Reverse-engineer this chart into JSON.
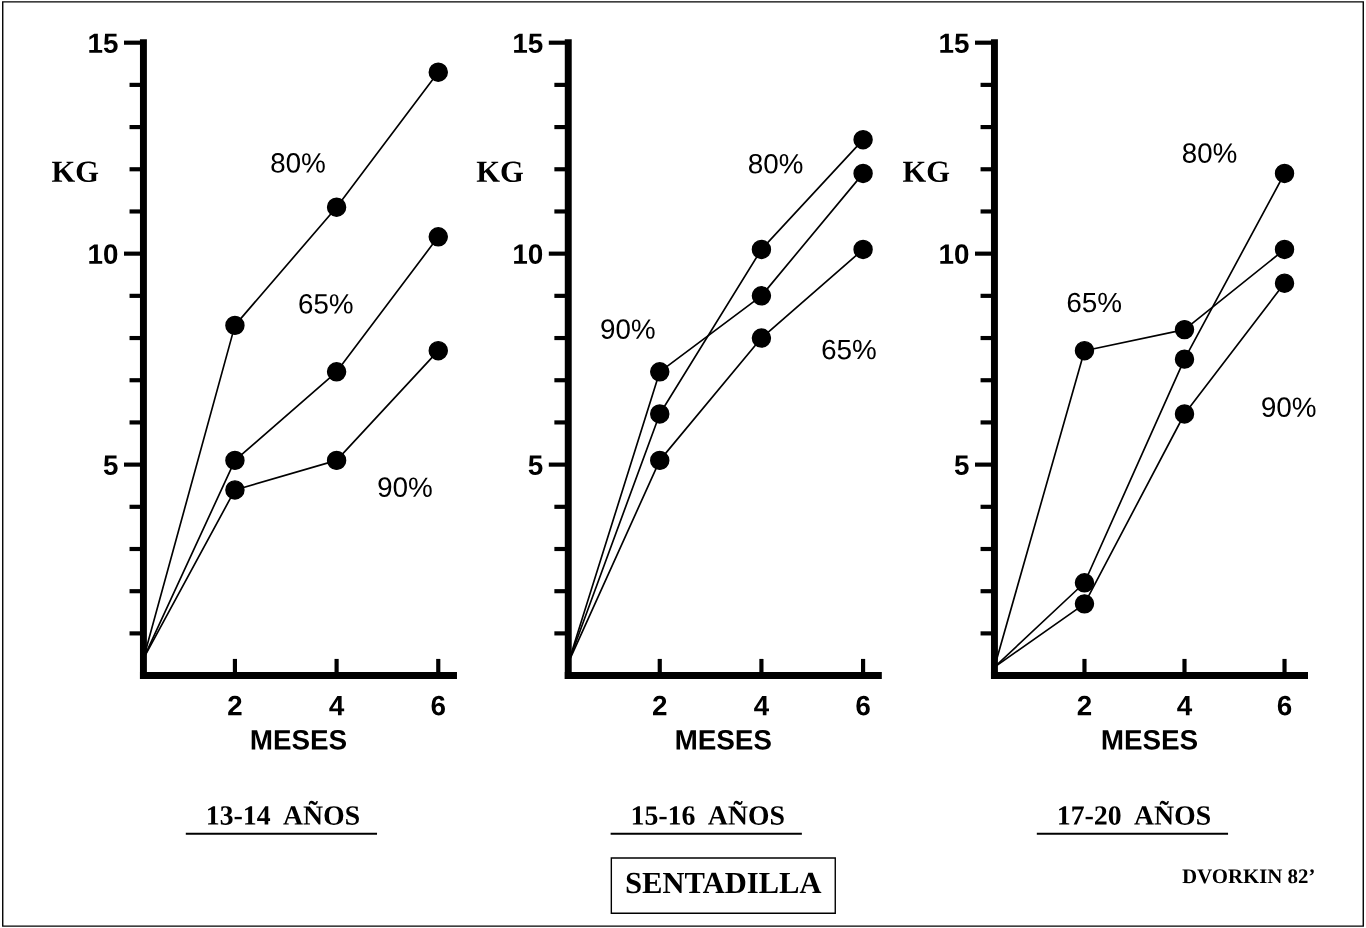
{
  "chart_data": [
    {
      "type": "line",
      "title": "13-14  AÑOS",
      "xlabel": "MESES",
      "ylabel": "KG",
      "x": [
        0.2,
        2,
        4,
        6
      ],
      "xlim": [
        0.2,
        6.3
      ],
      "ylim": [
        0,
        15
      ],
      "xticks": [
        2,
        4,
        6
      ],
      "yticks": [
        {
          "value": 1,
          "label": null
        },
        {
          "value": 2,
          "label": null
        },
        {
          "value": 3,
          "label": null
        },
        {
          "value": 4,
          "label": null
        },
        5,
        {
          "value": 6,
          "label": null
        },
        {
          "value": 7,
          "label": null
        },
        {
          "value": 8,
          "label": null
        },
        {
          "value": 9,
          "label": null
        },
        10,
        {
          "value": 11,
          "label": null
        },
        {
          "value": 12,
          "label": null
        },
        {
          "value": 13,
          "label": null
        },
        {
          "value": 14,
          "label": null
        },
        15
      ],
      "marker": "circle",
      "line_style": "solid",
      "grid": false,
      "legend": false,
      "series": [
        {
          "name": "80%",
          "color": "#000000",
          "values": [
            0.4,
            8.3,
            11.1,
            14.3
          ]
        },
        {
          "name": "65%",
          "color": "#000000",
          "values": [
            0.4,
            5.1,
            7.2,
            10.4
          ]
        },
        {
          "name": "90%",
          "color": "#000000",
          "values": [
            0.4,
            4.4,
            5.1,
            7.7
          ]
        }
      ]
    },
    {
      "type": "line",
      "title": "15-16  AÑOS",
      "xlabel": "MESES",
      "ylabel": "KG",
      "x": [
        0.2,
        2,
        4,
        6
      ],
      "xlim": [
        0.2,
        6.3
      ],
      "ylim": [
        0,
        15
      ],
      "xticks": [
        2,
        4,
        6
      ],
      "yticks": [
        {
          "value": 1,
          "label": null
        },
        {
          "value": 2,
          "label": null
        },
        {
          "value": 3,
          "label": null
        },
        {
          "value": 4,
          "label": null
        },
        5,
        {
          "value": 6,
          "label": null
        },
        {
          "value": 7,
          "label": null
        },
        {
          "value": 8,
          "label": null
        },
        {
          "value": 9,
          "label": null
        },
        10,
        {
          "value": 11,
          "label": null
        },
        {
          "value": 12,
          "label": null
        },
        {
          "value": 13,
          "label": null
        },
        {
          "value": 14,
          "label": null
        },
        15
      ],
      "marker": "circle",
      "line_style": "solid",
      "grid": false,
      "series": [
        {
          "name": "80%",
          "color": "#000000",
          "values": [
            0.3,
            6.2,
            10.1,
            12.7
          ]
        },
        {
          "name": "90%",
          "color": "#000000",
          "values": [
            0.3,
            7.2,
            9.0,
            11.9
          ]
        },
        {
          "name": "65%",
          "color": "#000000",
          "values": [
            0.3,
            5.1,
            8.0,
            10.1
          ]
        }
      ],
      "annotations": [
        "SENTADILLA"
      ]
    },
    {
      "type": "line",
      "title": "17-20  AÑOS",
      "xlabel": "MESES",
      "ylabel": "KG",
      "x": [
        0.2,
        2,
        4,
        6
      ],
      "xlim": [
        0.2,
        6.4
      ],
      "ylim": [
        0,
        15
      ],
      "xticks": [
        2,
        4,
        6
      ],
      "yticks": [
        {
          "value": 1,
          "label": null
        },
        {
          "value": 2,
          "label": null
        },
        {
          "value": 3,
          "label": null
        },
        {
          "value": 4,
          "label": null
        },
        5,
        {
          "value": 6,
          "label": null
        },
        {
          "value": 7,
          "label": null
        },
        {
          "value": 8,
          "label": null
        },
        {
          "value": 9,
          "label": null
        },
        10,
        {
          "value": 11,
          "label": null
        },
        {
          "value": 12,
          "label": null
        },
        {
          "value": 13,
          "label": null
        },
        {
          "value": 14,
          "label": null
        },
        15
      ],
      "marker": "circle",
      "line_style": "solid",
      "grid": false,
      "series": [
        {
          "name": "65%",
          "color": "#000000",
          "values": [
            0.2,
            7.7,
            8.2,
            10.1
          ]
        },
        {
          "name": "80%",
          "color": "#000000",
          "values": [
            0.2,
            2.2,
            7.5,
            11.9
          ]
        },
        {
          "name": "90%",
          "color": "#000000",
          "values": [
            0.2,
            1.7,
            6.2,
            9.3
          ]
        }
      ],
      "annotations": [
        "DVORKIN 82’"
      ]
    }
  ]
}
